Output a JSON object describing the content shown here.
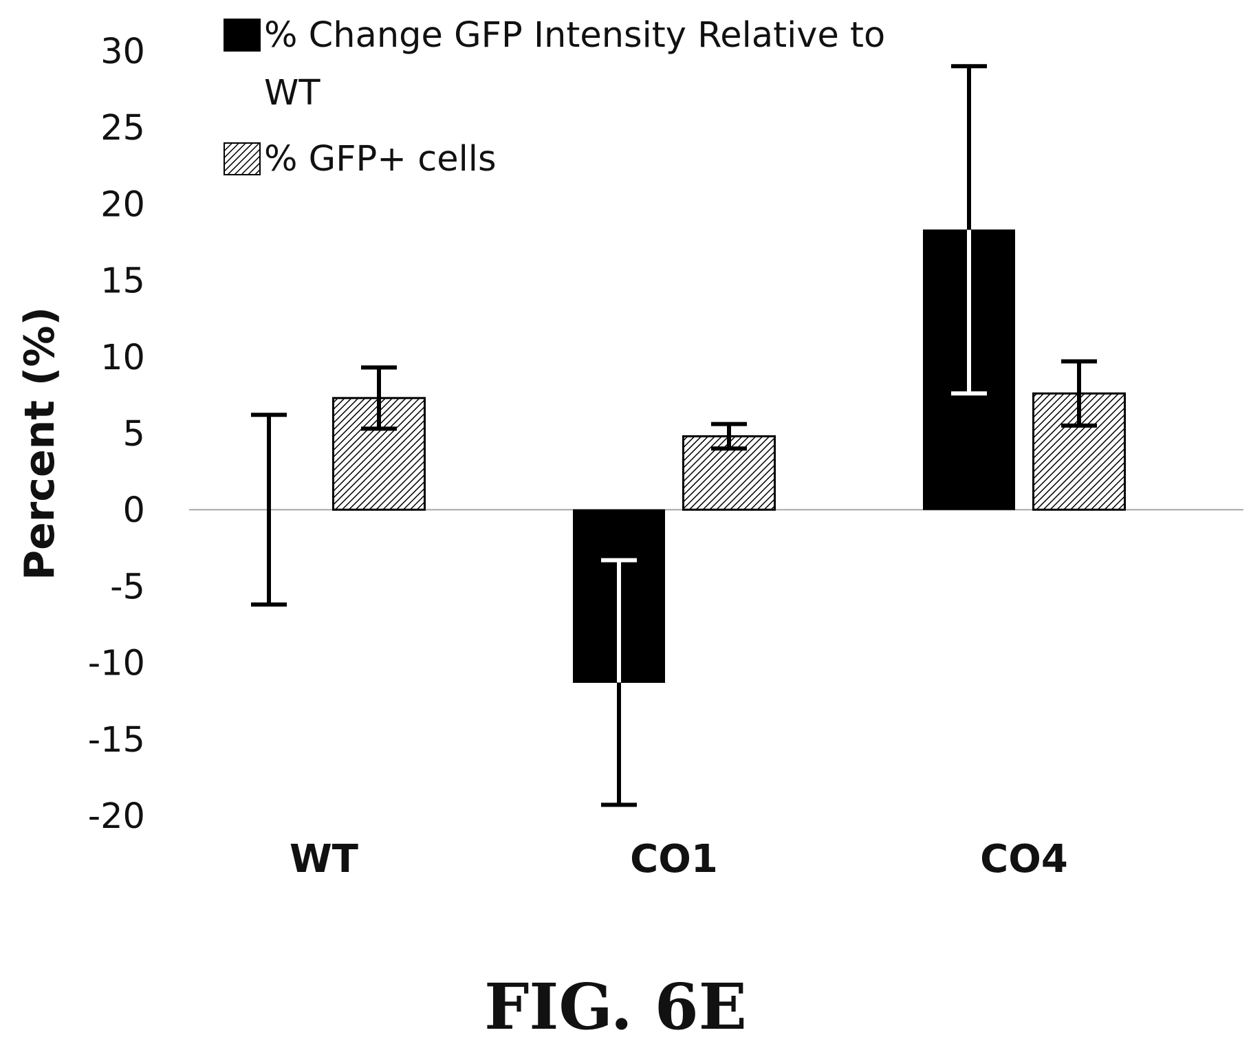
{
  "chart_data": {
    "type": "bar",
    "categories": [
      "WT",
      "CO1",
      "CO4"
    ],
    "ylabel": "Percent (%)",
    "xlabel": "",
    "ylim": [
      -20,
      30
    ],
    "yticks": [
      30,
      25,
      20,
      15,
      10,
      5,
      0,
      -5,
      -10,
      -15,
      -20
    ],
    "ytick_labels": [
      "30",
      "25",
      "20",
      "15",
      "10",
      "5",
      "0",
      "-5",
      "-10",
      "-15",
      "-20"
    ],
    "legend_position": "top",
    "series": [
      {
        "name": "% Change GFP Intensity Relative to WT",
        "legend_lines": [
          "% Change GFP Intensity Relative to",
          "WT"
        ],
        "fill": "solid",
        "color": "#000000",
        "values": [
          0,
          -11.3,
          18.3
        ],
        "error": [
          6.2,
          8.0,
          10.7
        ]
      },
      {
        "name": "% GFP+ cells",
        "legend_lines": [
          "% GFP+ cells"
        ],
        "fill": "hatched",
        "color": "#ffffff",
        "values": [
          7.3,
          4.8,
          7.6
        ],
        "error": [
          2.0,
          0.8,
          2.1
        ]
      }
    ],
    "grid": false
  },
  "caption": "FIG. 6E"
}
